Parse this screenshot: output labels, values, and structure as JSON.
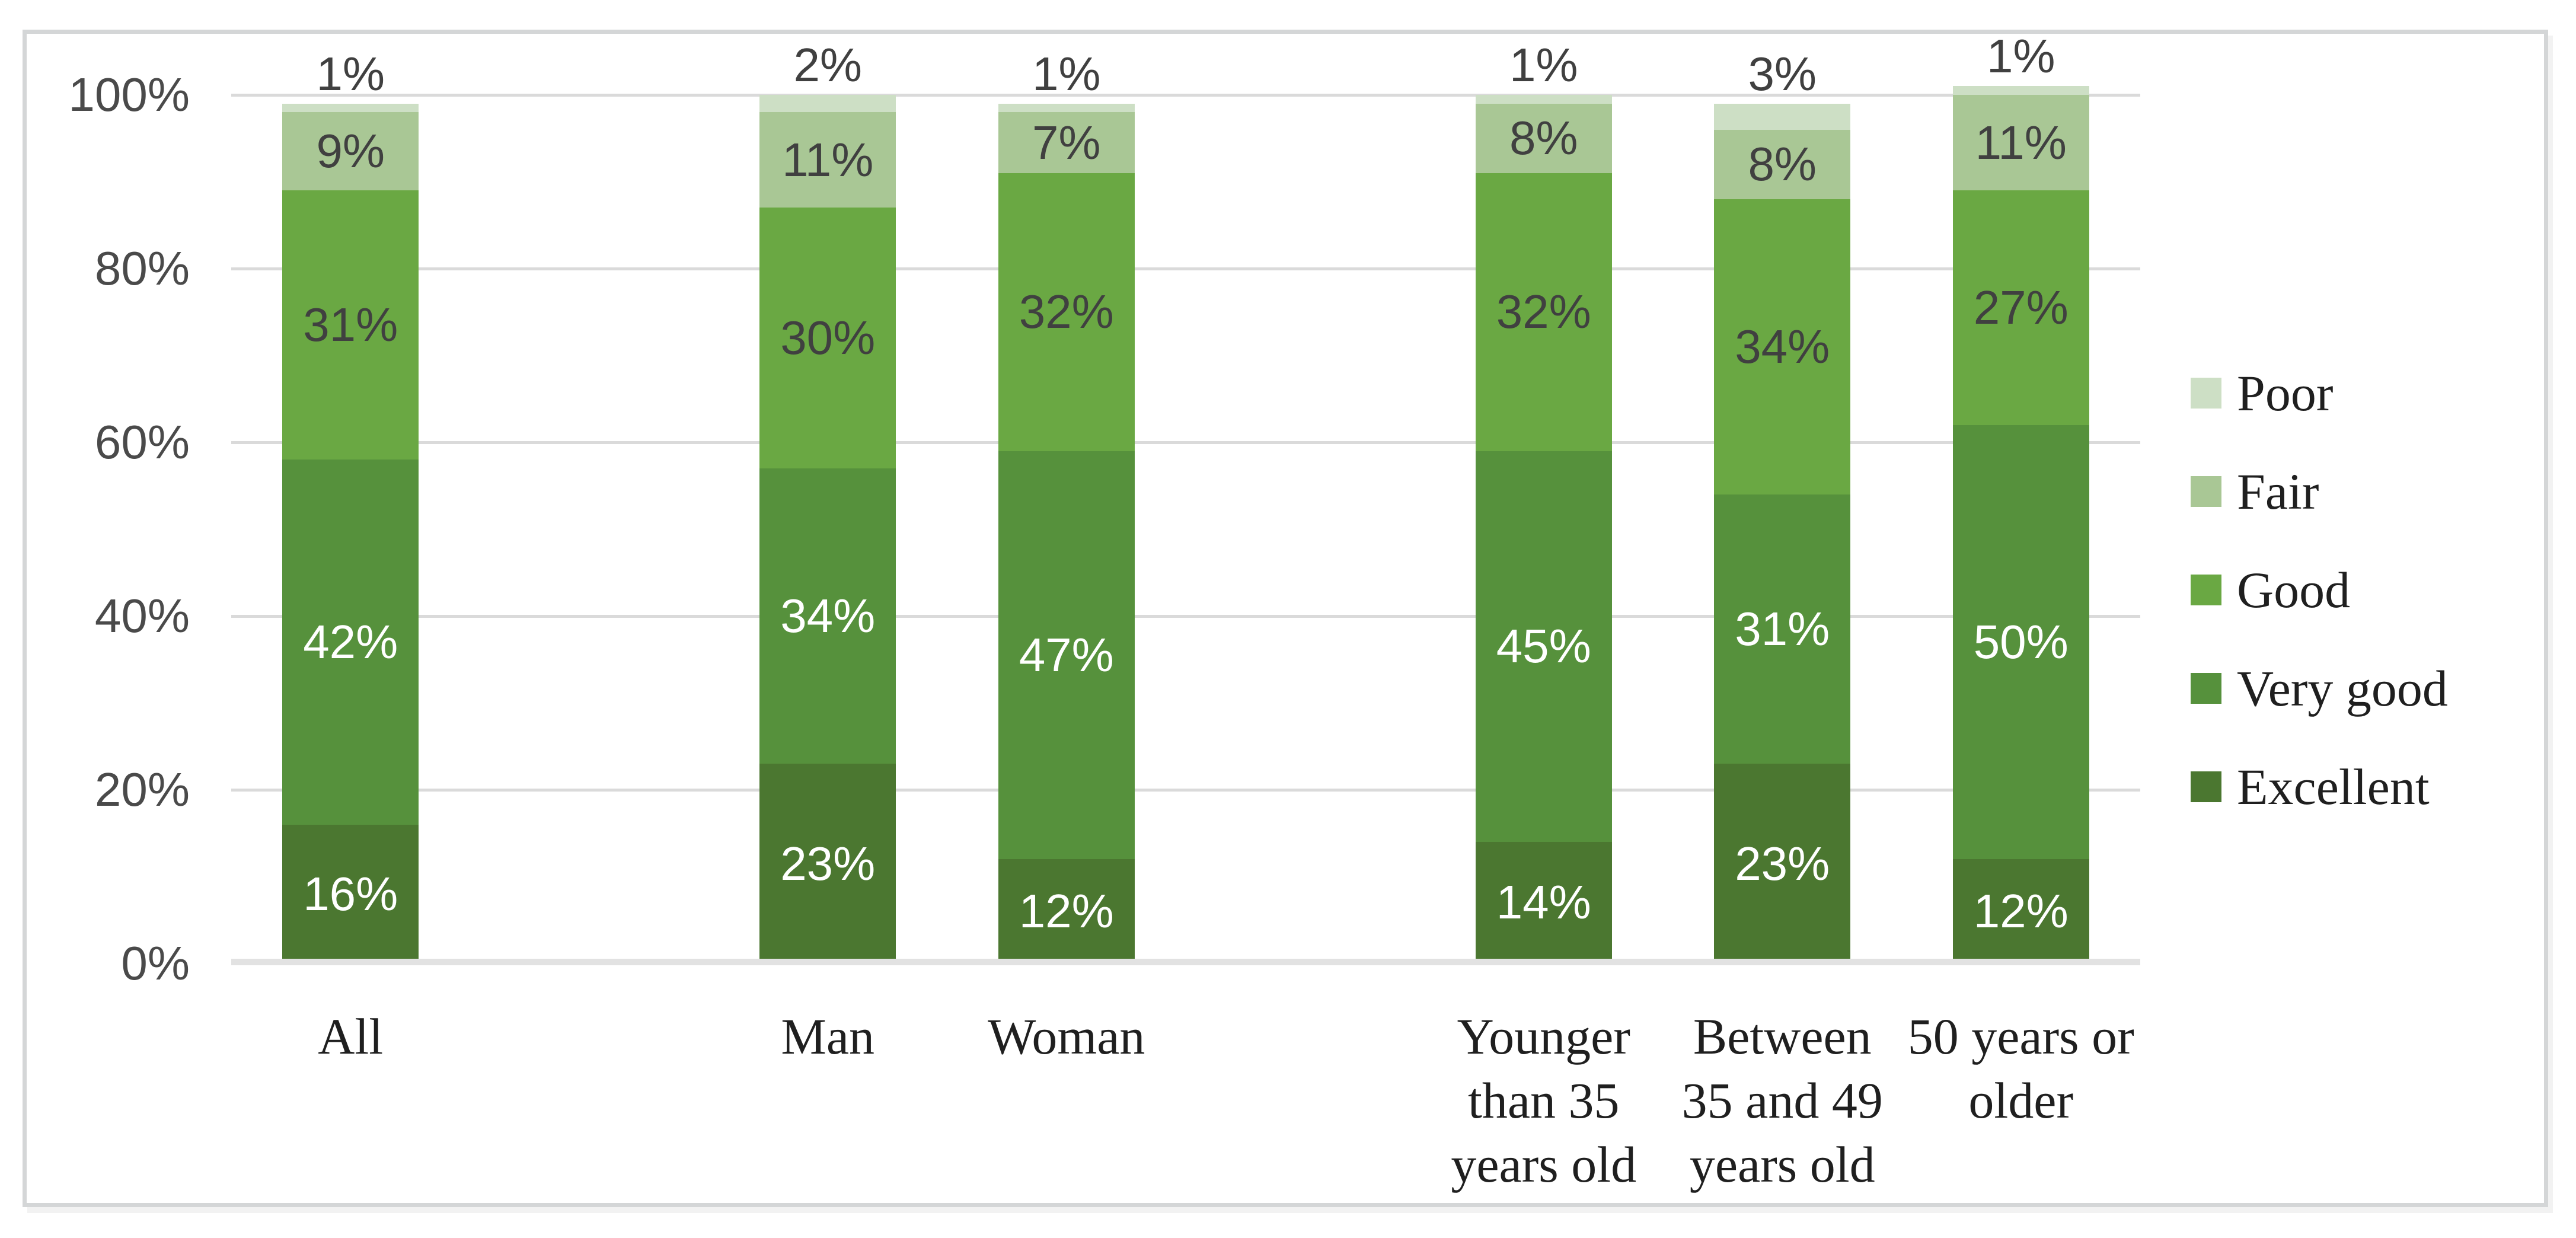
{
  "chart_data": {
    "type": "bar",
    "stacked": true,
    "title": "",
    "value_suffix": "%",
    "categories": [
      {
        "label": "All",
        "slot": 0
      },
      {
        "label": "Man",
        "slot": 2
      },
      {
        "label": "Woman",
        "slot": 3
      },
      {
        "label": "Younger\nthan 35\nyears old",
        "slot": 5
      },
      {
        "label": "Between\n35 and 49\nyears old",
        "slot": 6
      },
      {
        "label": "50 years or\nolder",
        "slot": 7
      }
    ],
    "slot_count": 8,
    "series_bottom_to_top": [
      {
        "name": "Excellent",
        "color": "#4B7730",
        "label_color": "#ffffff",
        "values": [
          16,
          23,
          12,
          14,
          23,
          12
        ]
      },
      {
        "name": "Very good",
        "color": "#56913C",
        "label_color": "#ffffff",
        "values": [
          42,
          34,
          47,
          45,
          31,
          50
        ]
      },
      {
        "name": "Good",
        "color": "#6AA843",
        "label_color": "#404040",
        "values": [
          31,
          30,
          32,
          32,
          34,
          27
        ]
      },
      {
        "name": "Fair",
        "color": "#A9C795",
        "label_color": "#404040",
        "values": [
          9,
          11,
          7,
          8,
          8,
          11
        ]
      },
      {
        "name": "Poor",
        "color": "#CDDFC5",
        "label_color": "#404040",
        "values": [
          1,
          2,
          1,
          1,
          3,
          1
        ]
      }
    ],
    "legend": {
      "position": "right",
      "items_top_to_bottom": [
        "Poor",
        "Fair",
        "Good",
        "Very good",
        "Excellent"
      ]
    },
    "y_axis": {
      "ticks_bottom_to_top": [
        "0%",
        "20%",
        "40%",
        "60%",
        "80%",
        "100%"
      ],
      "min": 0,
      "max": 100,
      "grid": true
    }
  },
  "style": {
    "grid_color": "#dadada",
    "axis_line_color": "#e2e2e2",
    "tick_label_color": "#4a4a4a",
    "category_label_color": "#1f1f1f",
    "legend_label_color": "#1f1f1f",
    "frame_border_color": "#d4d6d7",
    "background": "#ffffff"
  }
}
